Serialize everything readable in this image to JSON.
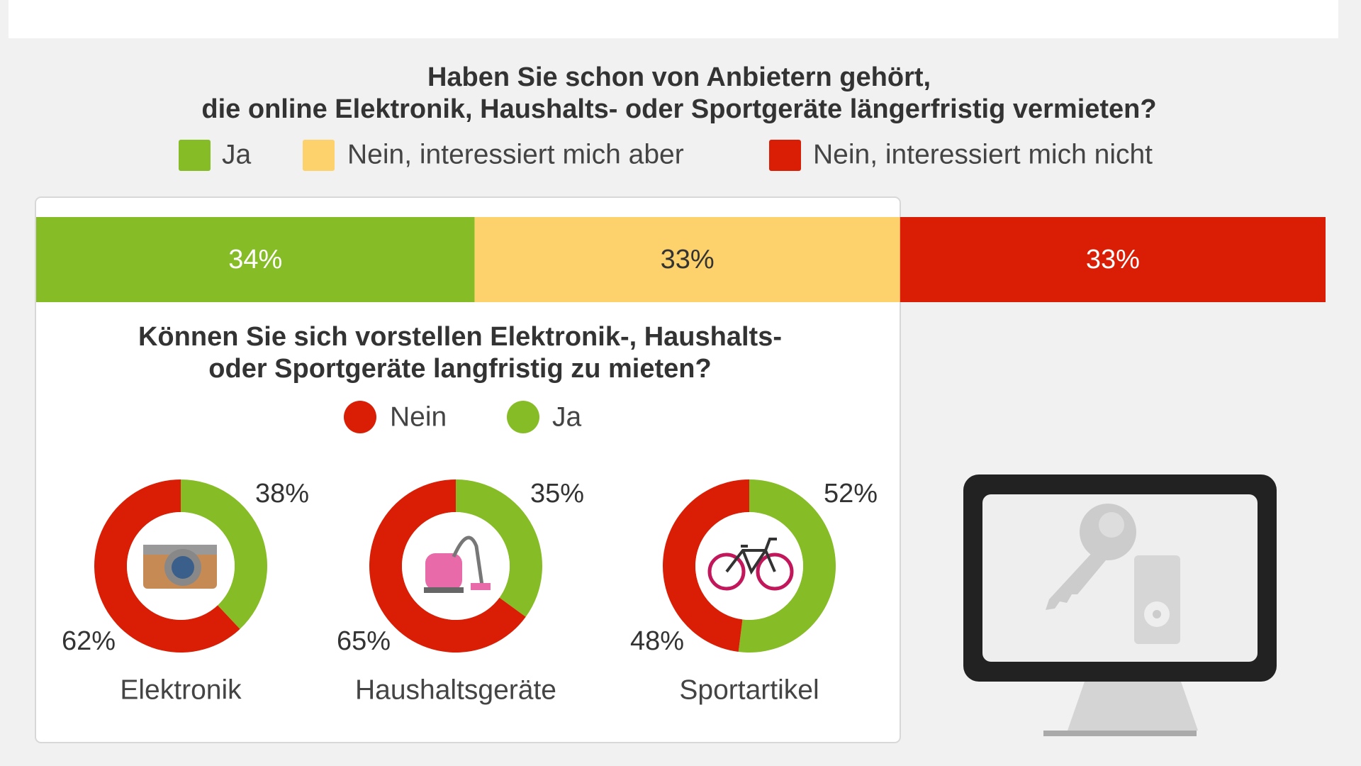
{
  "chart_data": [
    {
      "type": "bar",
      "stacked": true,
      "title": [
        "Haben Sie schon von Anbietern gehört,",
        "die online Elektronik, Haushalts- oder Sportgeräte längerfristig vermieten?"
      ],
      "series": [
        {
          "name": "Ja",
          "color": "#86bc25",
          "values": [
            34
          ],
          "value_labels": [
            "34%"
          ]
        },
        {
          "name": "Nein, interessiert mich aber",
          "color": "#fdd16c",
          "values": [
            33
          ],
          "value_labels": [
            "33%"
          ]
        },
        {
          "name": "Nein, interessiert mich nicht",
          "color": "#d91e05",
          "values": [
            33
          ],
          "value_labels": [
            "33%"
          ]
        }
      ]
    },
    {
      "type": "donut",
      "title": [
        "Können Sie sich vorstellen Elektronik-, Haushalts-",
        "oder Sportgeräte langfristig zu mieten?"
      ],
      "categories": [
        "Elektronik",
        "Haushaltsgeräte",
        "Sportartikel"
      ],
      "series": [
        {
          "name": "Nein",
          "color": "#d91e05",
          "values": [
            62,
            65,
            48
          ],
          "value_labels": [
            "62%",
            "65%",
            "48%"
          ]
        },
        {
          "name": "Ja",
          "color": "#86bc25",
          "values": [
            38,
            35,
            52
          ],
          "value_labels": [
            "38%",
            "35%",
            "52%"
          ]
        }
      ]
    }
  ]
}
